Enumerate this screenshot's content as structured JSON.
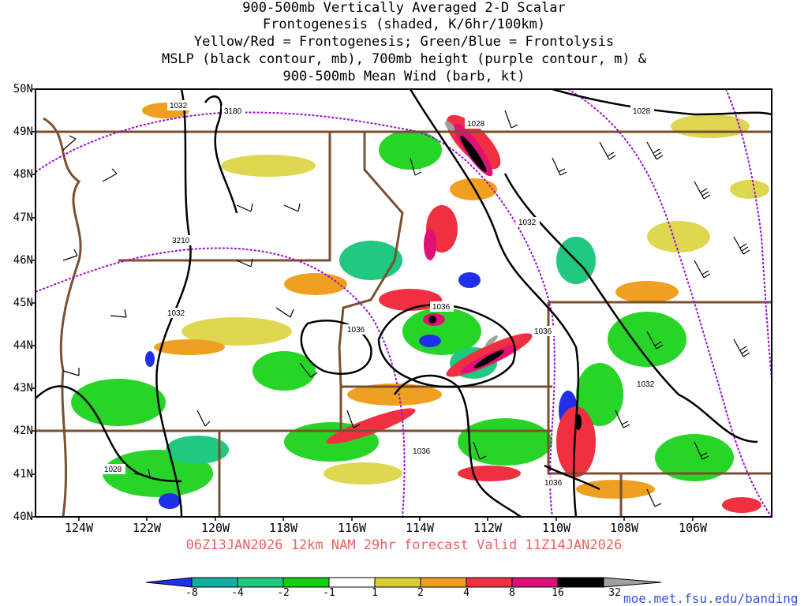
{
  "title": {
    "line1": "900-500mb Vertically Averaged 2-D Scalar",
    "line2": "Frontogenesis (shaded, K/6hr/100km)",
    "line3": "Yellow/Red = Frontogenesis;  Green/Blue = Frontolysis",
    "line4": "MSLP (black contour, mb), 700mb height (purple contour, m) &",
    "line5": "900-500mb Mean Wind (barb, kt)"
  },
  "axes": {
    "lat_labels": [
      "50N",
      "49N",
      "48N",
      "47N",
      "46N",
      "45N",
      "44N",
      "43N",
      "42N",
      "41N",
      "40N"
    ],
    "lon_labels": [
      "124W",
      "122W",
      "120W",
      "118W",
      "116W",
      "114W",
      "112W",
      "110W",
      "108W",
      "106W"
    ]
  },
  "valid_text": "06Z13JAN2026 12km NAM 29hr forecast Valid 11Z14JAN2026",
  "colorbar": {
    "labels": [
      "-8",
      "-4",
      "-2",
      "-1",
      "1",
      "2",
      "4",
      "8",
      "16",
      "32"
    ],
    "colors": [
      "#2030e8",
      "#10b0a0",
      "#20c880",
      "#10d010",
      "#ffffff",
      "#d8d030",
      "#f0a020",
      "#f03040",
      "#e01078",
      "#000000",
      "#a0a0a0"
    ]
  },
  "contour_labels": {
    "mslp": [
      "1032",
      "1028",
      "1028",
      "1032",
      "1032",
      "1036",
      "1036",
      "1036",
      "1032",
      "1028",
      "1036",
      "1036"
    ],
    "height": [
      "3180",
      "3210"
    ]
  },
  "colors": {
    "mslp": "#000000",
    "height": "#9a10d8",
    "borders": "#7a5030",
    "valid_text": "#f06060",
    "url": "#3a52e0"
  },
  "footer": {
    "url": "moe.met.fsu.edu/banding"
  }
}
